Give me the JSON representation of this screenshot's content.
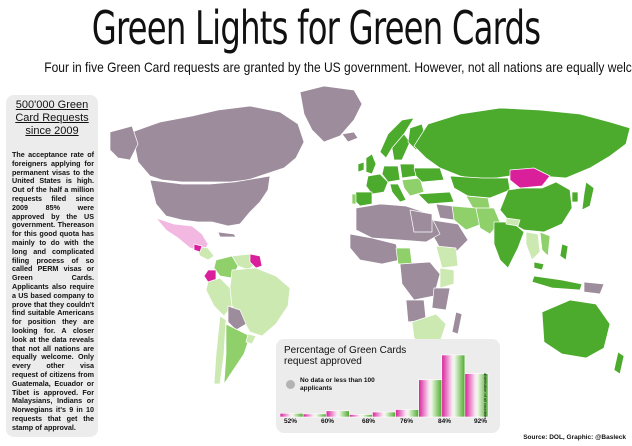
{
  "title": "Green Lights for Green Cards",
  "subtitle": "Four in five Green Card requests are granted by the US government. However, not all nations are equally welcome",
  "sidebar": {
    "heading": "500'000 Green\nCard Requests\nsince 2009",
    "body": "The acceptance rate of foreigners applying for permanent visas to the United States is high. Out of the half a million requests filed since 2009 85% were approved by the US government. Thereason for this good quota has mainly to do with the long and complicated filing process of so called PERM visas or Green Cards. Applicants also require a US based company to prove that they couldn't find suitable Americans for position they are looking for. A closer look at the data reveals that not all nations are equally welcome. Only every other visa request of citizens from Guatemala, Ecuador or Tibet is approved. For Malaysians, Indians or Norwegians it's 9 in 10 requests that get the stamp of approval."
  },
  "legend": {
    "title": "Percentage of Green Cards\nrequest approved",
    "no_data": "No data or less than 100\napplicants",
    "ticks": [
      "52%",
      "60%",
      "68%",
      "76%",
      "84%",
      "92%"
    ],
    "vertical_label": "distribution of all countries",
    "histogram": [
      0.06,
      0.05,
      0.1,
      0.04,
      0.08,
      0.12,
      0.6,
      1.0,
      0.7
    ],
    "colors": {
      "low": "#d9209a",
      "mid": "#f2b8e2",
      "high": "#4caa2c",
      "no_data": "#9d8c9c"
    }
  },
  "source": "Source: DOL, Graphic: @Basleck",
  "colors": {
    "background": "#ffffff",
    "ocean": "#ffffff",
    "panel": "#ececec",
    "no_data": "#9d8c9c",
    "green_dark": "#4caa2c",
    "green_mid": "#8fd06a",
    "green_light": "#cde9b2",
    "pink_dark": "#d9209a",
    "pink_light": "#f2b8e2"
  }
}
